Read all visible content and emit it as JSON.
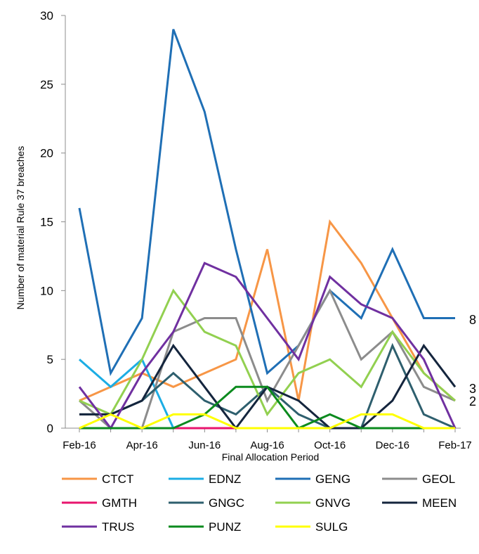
{
  "chart_data": {
    "type": "line",
    "title": "",
    "xlabel": "Final Allocation Period",
    "ylabel": "Number of material  Rule 37 breaches",
    "ylim": [
      0,
      30
    ],
    "y_ticks": [
      0,
      5,
      10,
      15,
      20,
      25,
      30
    ],
    "x_tick_labels": [
      "Feb-16",
      "Apr-16",
      "Jun-16",
      "Aug-16",
      "Oct-16",
      "Dec-16",
      "Feb-17"
    ],
    "categories": [
      "Feb-16",
      "Mar-16",
      "Apr-16",
      "May-16",
      "Jun-16",
      "Jul-16",
      "Aug-16",
      "Sep-16",
      "Oct-16",
      "Nov-16",
      "Dec-16",
      "Jan-17",
      "Feb-17"
    ],
    "grid": false,
    "legend": "bottom",
    "series": [
      {
        "name": "CTCT",
        "color": "#F79646",
        "values": [
          2,
          3,
          4,
          3,
          4,
          5,
          13,
          2,
          15,
          12,
          8,
          4,
          2
        ]
      },
      {
        "name": "EDNZ",
        "color": "#1CADE4",
        "values": [
          5,
          3,
          5,
          0,
          0,
          0,
          0,
          0,
          0,
          0,
          0,
          0,
          0
        ]
      },
      {
        "name": "GENG",
        "color": "#1F6FB5",
        "values": [
          16,
          4,
          8,
          29,
          23,
          13,
          4,
          6,
          10,
          8,
          13,
          8,
          8
        ]
      },
      {
        "name": "GEOL",
        "color": "#8C8C8C",
        "values": [
          2,
          0,
          0,
          7,
          8,
          8,
          2,
          6,
          10,
          5,
          7,
          3,
          2
        ]
      },
      {
        "name": "GMTH",
        "color": "#E8156E",
        "values": [
          0,
          0,
          0,
          0,
          0,
          0,
          0,
          0,
          0,
          0,
          0,
          0,
          0
        ]
      },
      {
        "name": "GNGC",
        "color": "#2E5F6E",
        "values": [
          1,
          1,
          2,
          4,
          2,
          1,
          3,
          1,
          0,
          0,
          6,
          1,
          0
        ]
      },
      {
        "name": "GNVG",
        "color": "#92D050",
        "values": [
          2,
          1,
          5,
          10,
          7,
          6,
          1,
          4,
          5,
          3,
          7,
          4,
          2
        ]
      },
      {
        "name": "MEEN",
        "color": "#14253D",
        "values": [
          1,
          1,
          2,
          6,
          3,
          0,
          3,
          2,
          0,
          0,
          2,
          6,
          3
        ]
      },
      {
        "name": "TRUS",
        "color": "#7030A0",
        "values": [
          3,
          0,
          4,
          7,
          12,
          11,
          8,
          5,
          11,
          9,
          8,
          5,
          0
        ]
      },
      {
        "name": "PUNZ",
        "color": "#0B8A1E",
        "values": [
          0,
          0,
          0,
          0,
          1,
          3,
          3,
          0,
          1,
          0,
          0,
          0,
          0
        ]
      },
      {
        "name": "SULG",
        "color": "#FFFF00",
        "values": [
          0,
          1,
          0,
          1,
          1,
          0,
          0,
          0,
          0,
          1,
          1,
          0,
          0
        ]
      }
    ],
    "annotations": [
      "8",
      "3",
      "2"
    ]
  }
}
